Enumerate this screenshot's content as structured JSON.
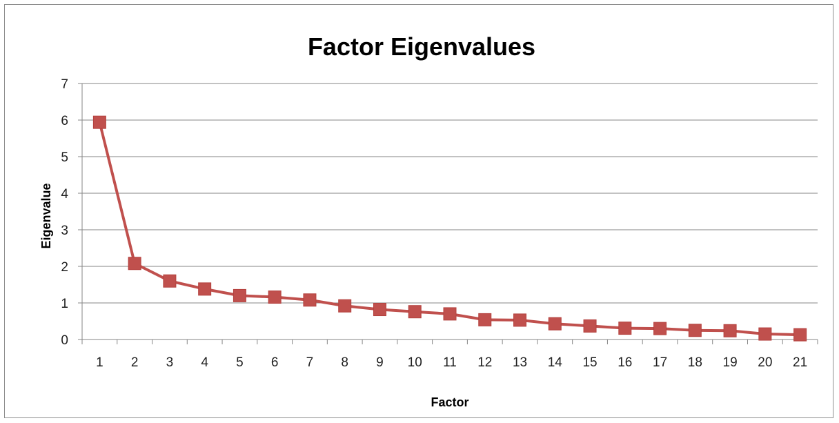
{
  "chart_data": {
    "type": "line",
    "title": "Factor Eigenvalues",
    "xlabel": "Factor",
    "ylabel": "Eigenvalue",
    "categories": [
      "1",
      "2",
      "3",
      "4",
      "5",
      "6",
      "7",
      "8",
      "9",
      "10",
      "11",
      "12",
      "13",
      "14",
      "15",
      "16",
      "17",
      "18",
      "19",
      "20",
      "21"
    ],
    "series": [
      {
        "values": [
          5.94,
          2.08,
          1.6,
          1.38,
          1.2,
          1.16,
          1.08,
          0.92,
          0.82,
          0.76,
          0.7,
          0.54,
          0.53,
          0.43,
          0.37,
          0.31,
          0.3,
          0.25,
          0.24,
          0.15,
          0.13
        ],
        "color": "#c0504d"
      }
    ],
    "ylim": [
      0,
      7
    ],
    "yticks": [
      "0",
      "1",
      "2",
      "3",
      "4",
      "5",
      "6",
      "7"
    ],
    "grid": true,
    "legend": "none",
    "marker": "square",
    "gridline_color": "#868686"
  }
}
